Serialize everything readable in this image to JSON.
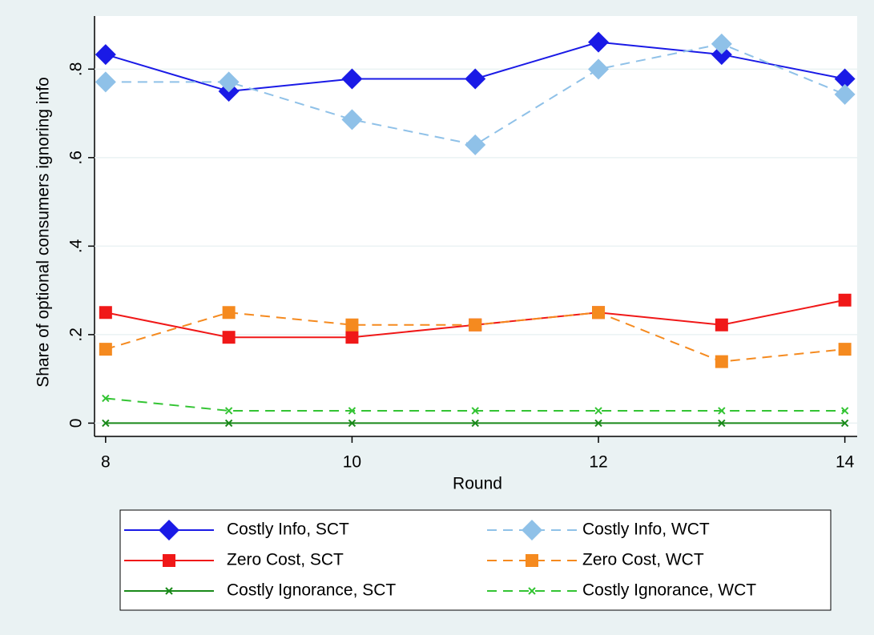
{
  "chart_data": {
    "type": "line",
    "xlabel": "Round",
    "ylabel": "Share of optional consumers ignoring info",
    "x": [
      8,
      9,
      10,
      11,
      12,
      13,
      14
    ],
    "xlim": [
      7.91,
      14.1
    ],
    "xticks": [
      8,
      10,
      12,
      14
    ],
    "ylim": [
      -0.03,
      0.92
    ],
    "yticks": [
      0,
      {
        "value": 0.2,
        "label": ".2"
      },
      {
        "value": 0.4,
        "label": ".4"
      },
      {
        "value": 0.6,
        "label": ".6"
      },
      {
        "value": 0.8,
        "label": ".8"
      }
    ],
    "grid": true,
    "series": [
      {
        "name": "Costly Info, SCT",
        "color": "#1a1ae6",
        "marker": "diamond",
        "dash": false,
        "values": [
          0.833,
          0.75,
          0.778,
          0.778,
          0.861,
          0.833,
          0.778
        ]
      },
      {
        "name": "Costly Info, WCT",
        "color": "#8fc1e8",
        "marker": "diamond",
        "dash": true,
        "values": [
          0.771,
          0.771,
          0.686,
          0.629,
          0.8,
          0.857,
          0.743
        ]
      },
      {
        "name": "Zero Cost, SCT",
        "color": "#f01818",
        "marker": "square",
        "dash": false,
        "values": [
          0.25,
          0.194,
          0.194,
          0.222,
          0.25,
          0.222,
          0.278
        ]
      },
      {
        "name": "Zero Cost, WCT",
        "color": "#f58a1f",
        "marker": "square",
        "dash": true,
        "values": [
          0.167,
          0.25,
          0.222,
          0.222,
          0.25,
          0.139,
          0.167
        ]
      },
      {
        "name": "Costly Ignorance, SCT",
        "color": "#1a8a1a",
        "marker": "x",
        "dash": false,
        "values": [
          0,
          0,
          0,
          0,
          0,
          0,
          0
        ]
      },
      {
        "name": "Costly Ignorance, WCT",
        "color": "#33c433",
        "marker": "x",
        "dash": true,
        "values": [
          0.056,
          0.028,
          0.028,
          0.028,
          0.028,
          0.028,
          0.028
        ]
      }
    ]
  }
}
